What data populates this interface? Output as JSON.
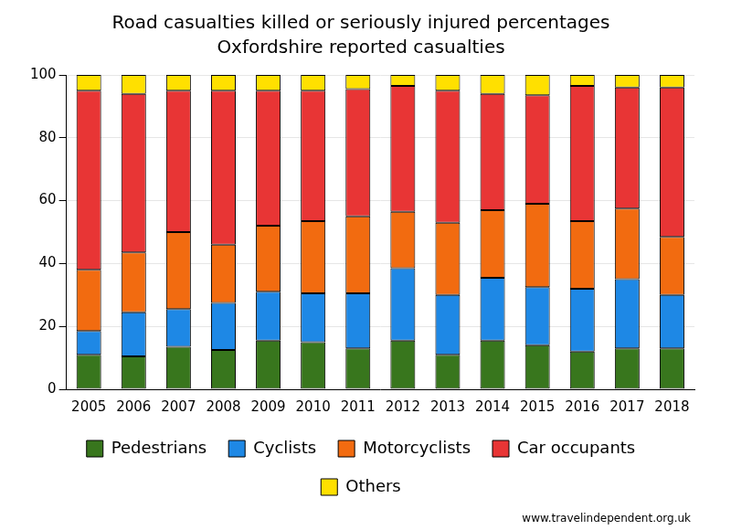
{
  "chart_data": {
    "type": "bar",
    "title": [
      "Road casualties killed or seriously injured percentages",
      "Oxfordshire reported casualties"
    ],
    "categories": [
      "2005",
      "2006",
      "2007",
      "2008",
      "2009",
      "2010",
      "2011",
      "2012",
      "2013",
      "2014",
      "2015",
      "2016",
      "2017",
      "2018"
    ],
    "series": [
      {
        "name": "Pedestrians",
        "color": "#38761d",
        "values": [
          11,
          10.5,
          13.5,
          12.5,
          15.5,
          15,
          13,
          15.5,
          11,
          15.5,
          14,
          12,
          13,
          13
        ]
      },
      {
        "name": "Cyclists",
        "color": "#1e88e5",
        "values": [
          7.5,
          14,
          12,
          15,
          15.5,
          15.5,
          17.5,
          23,
          19,
          20,
          18.5,
          20,
          22,
          17
        ]
      },
      {
        "name": "Motorcyclists",
        "color": "#f26b10",
        "values": [
          19.5,
          19,
          24.5,
          18.5,
          21,
          23,
          24.5,
          18,
          23,
          21.5,
          26.5,
          21.5,
          22.5,
          18.5
        ]
      },
      {
        "name": "Car occupants",
        "color": "#e83535",
        "values": [
          57,
          50.5,
          45,
          49,
          43,
          41.5,
          40.5,
          40,
          42,
          37,
          34.5,
          43,
          38.5,
          47.5
        ]
      },
      {
        "name": "Others",
        "color": "#ffe000",
        "values": [
          5,
          6,
          5,
          5,
          5,
          5,
          4.5,
          3.5,
          5,
          6,
          6.5,
          3.5,
          4,
          4
        ]
      }
    ],
    "ylim": [
      0,
      100
    ],
    "yticks": [
      0,
      20,
      40,
      60,
      80,
      100
    ],
    "stacked": true,
    "grid": true,
    "legend": "bottom",
    "data_labels": false,
    "annotations": [
      "www.travelindependent.org.uk"
    ]
  }
}
